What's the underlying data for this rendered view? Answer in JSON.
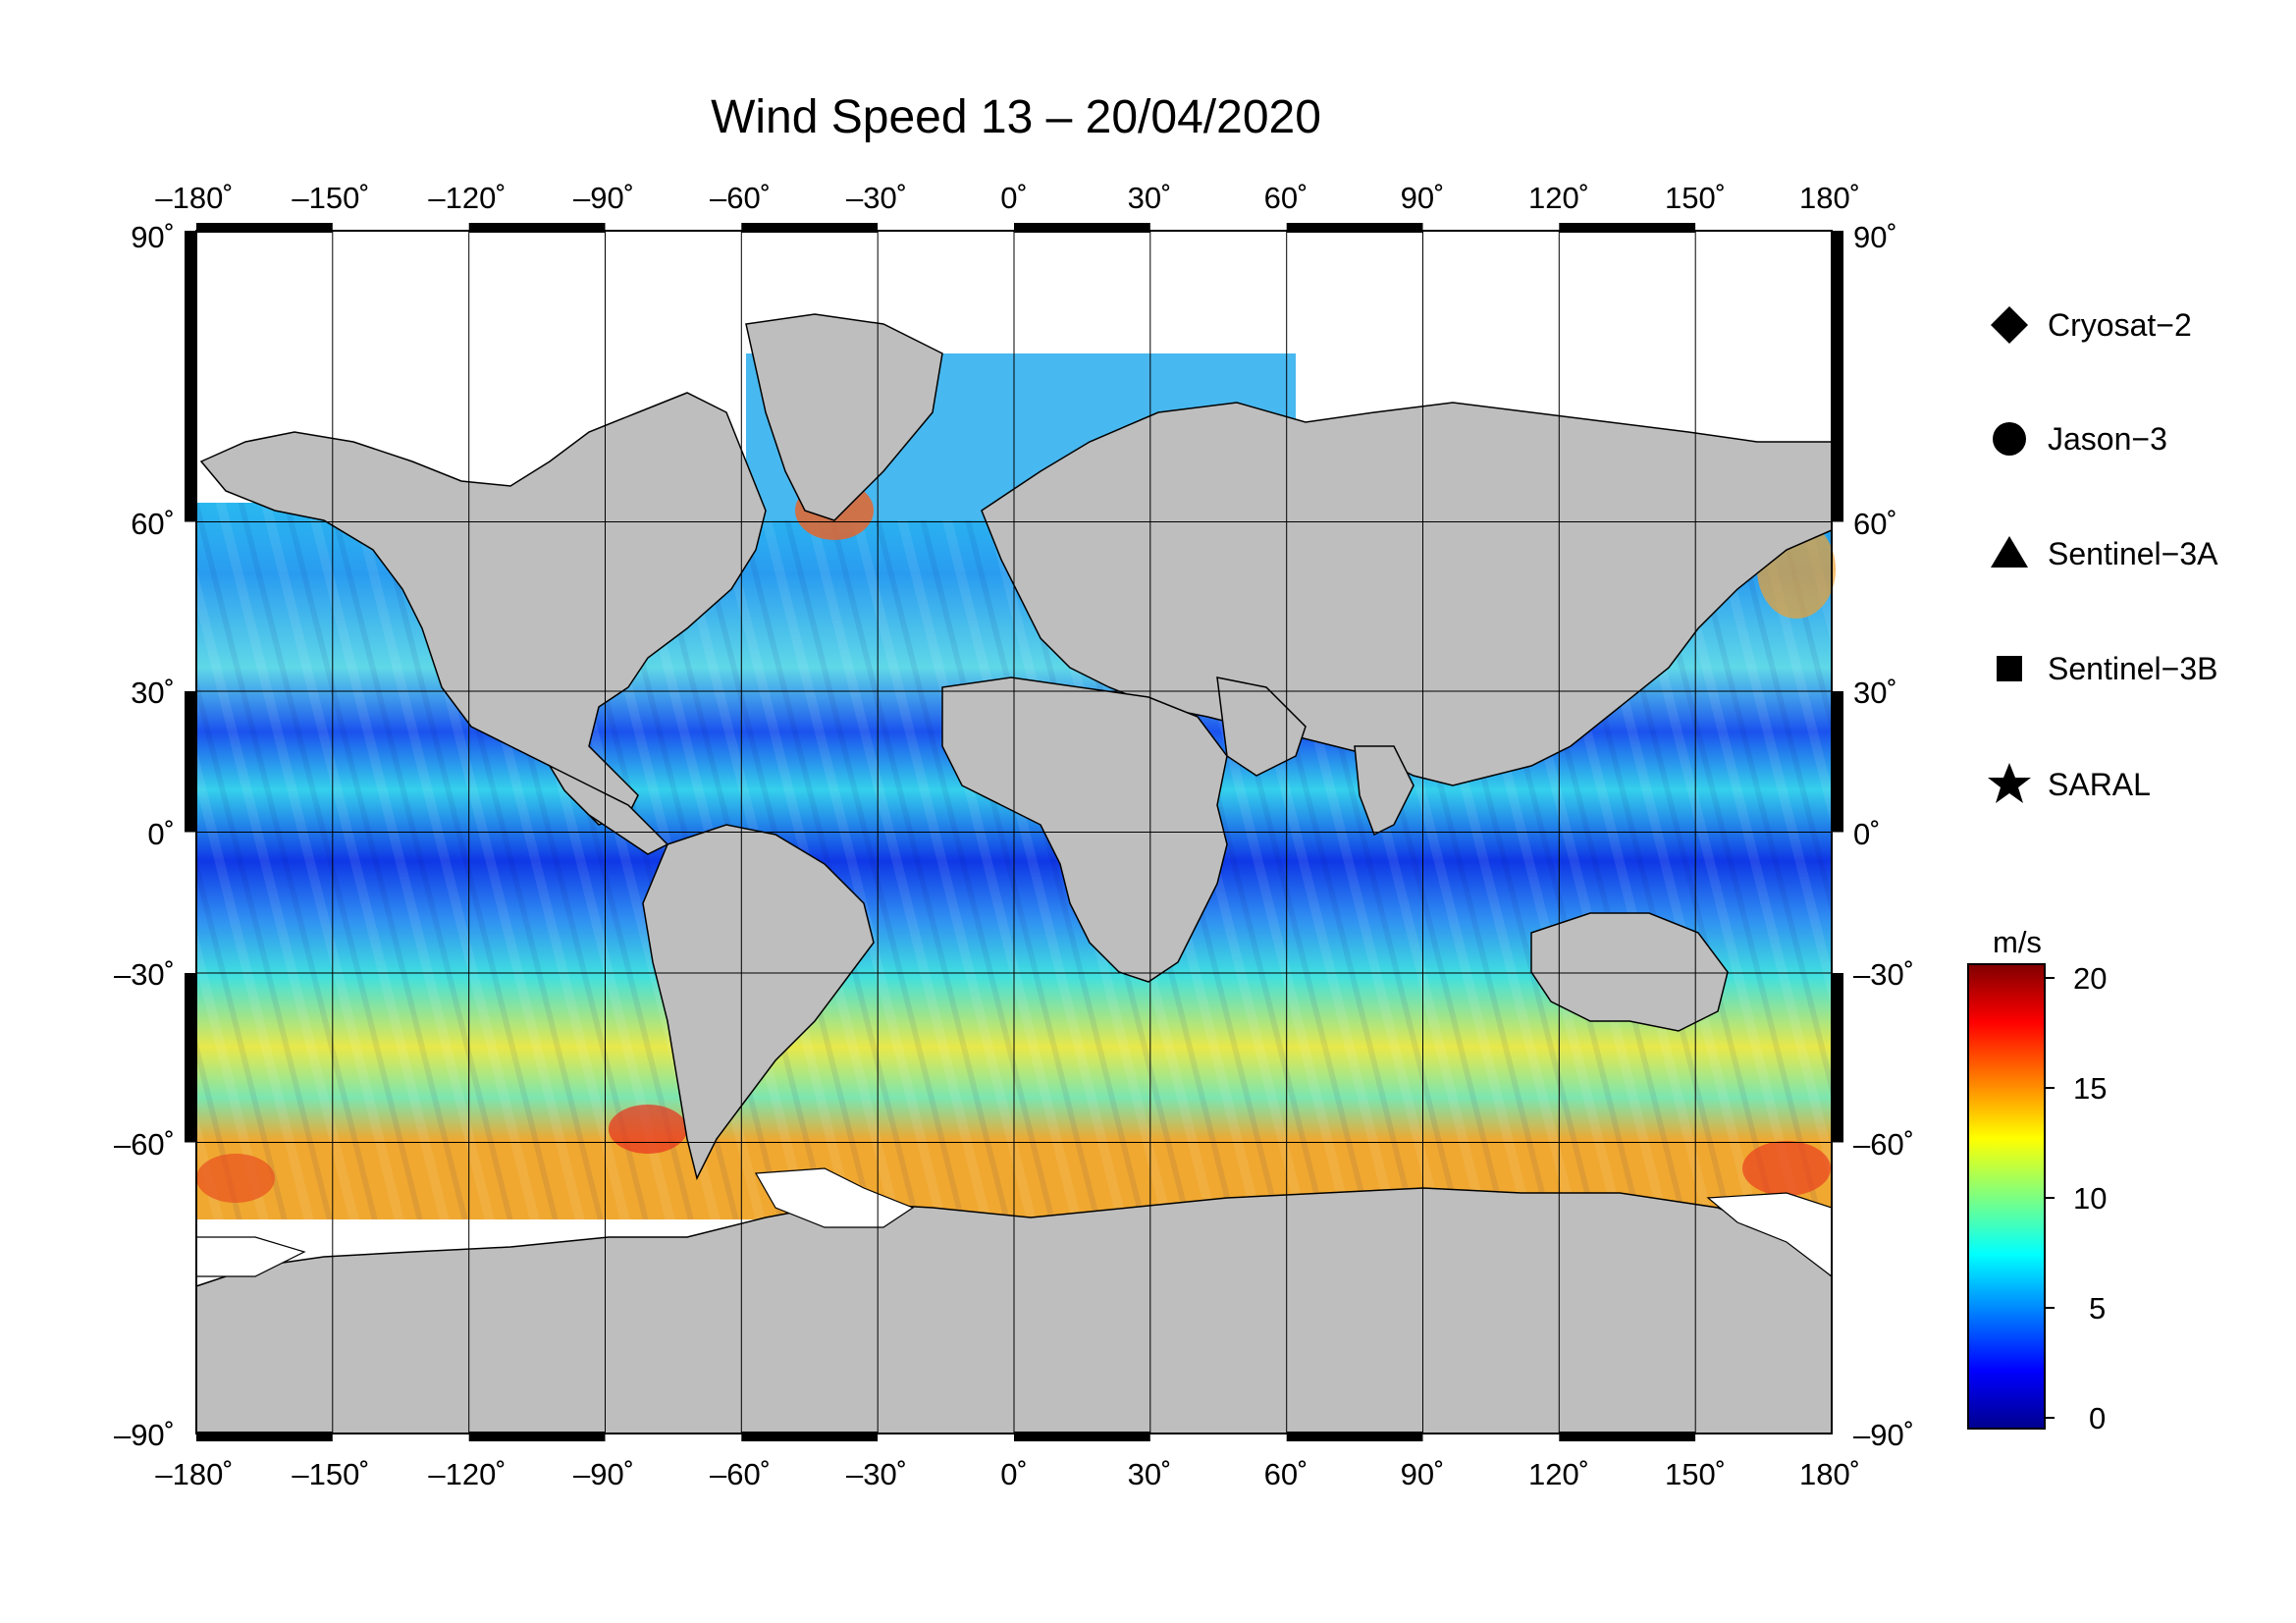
{
  "title": "Wind Speed 13 – 20/04/2020",
  "map": {
    "projection": "equirectangular",
    "lon_range": [
      -180,
      180
    ],
    "lat_range": [
      -90,
      90
    ],
    "lon_ticks": [
      "–180˚",
      "–150˚",
      "–120˚",
      "–90˚",
      "–60˚",
      "–30˚",
      "0˚",
      "30˚",
      "60˚",
      "90˚",
      "120˚",
      "150˚",
      "180˚"
    ],
    "lat_ticks_left": [
      "90˚",
      "60˚",
      "30˚",
      "0˚",
      "–30˚",
      "–60˚",
      "–90˚"
    ],
    "lat_ticks_right": [
      "90˚",
      "60˚",
      "30˚",
      "0˚",
      "–30˚",
      "–60˚",
      "–90˚"
    ],
    "grid": true,
    "land_color": "#bebebe",
    "ice_color": "#ffffff"
  },
  "legend": {
    "items": [
      {
        "symbol": "diamond",
        "label": "Cryosat−2"
      },
      {
        "symbol": "circle",
        "label": "Jason−3"
      },
      {
        "symbol": "triangle",
        "label": "Sentinel−3A"
      },
      {
        "symbol": "square",
        "label": "Sentinel−3B"
      },
      {
        "symbol": "star",
        "label": "SARAL"
      }
    ]
  },
  "colorbar": {
    "unit": "m/s",
    "min": 0,
    "max": 21,
    "ticks": [
      "0",
      "5",
      "10",
      "15",
      "20"
    ],
    "colormap": [
      "#00008f",
      "#0000ff",
      "#007fff",
      "#00ffff",
      "#7fff7f",
      "#ffff00",
      "#ff7f00",
      "#ff0000",
      "#800000"
    ]
  }
}
